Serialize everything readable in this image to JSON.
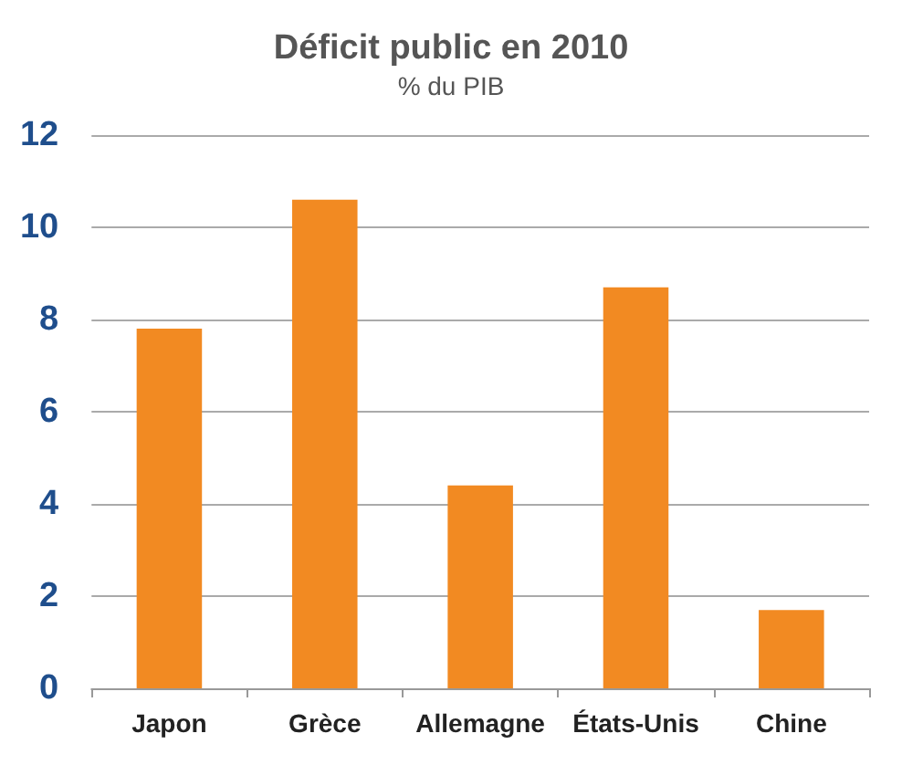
{
  "chart_data": {
    "type": "bar",
    "title": "Déficit public en 2010",
    "subtitle": "% du PIB",
    "categories": [
      "Japon",
      "Grèce",
      "Allemagne",
      "États-Unis",
      "Chine"
    ],
    "values": [
      7.8,
      10.6,
      4.4,
      8.7,
      1.7
    ],
    "color": "#f28a22",
    "ylim": [
      0,
      12
    ],
    "yticks": [
      0,
      2,
      4,
      6,
      8,
      10,
      12
    ],
    "grid": "y"
  }
}
